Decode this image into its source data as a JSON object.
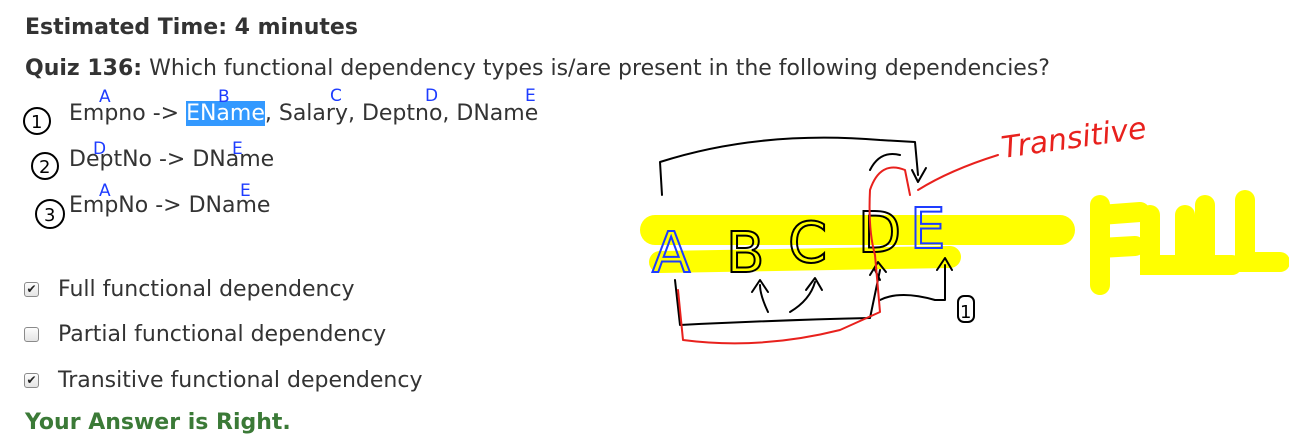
{
  "header": {
    "estimated_time": "Estimated Time: 4 minutes",
    "quiz_label": "Quiz 136:",
    "question": "Which functional dependency types is/are present in the following dependencies?"
  },
  "dependencies": [
    {
      "before": "Empno -> ",
      "highlight": "EName",
      "after": ", Salary, Deptno, DName"
    },
    {
      "text": "DeptNo -> DName"
    },
    {
      "text": "EmpNo -> DName"
    }
  ],
  "options": [
    {
      "label": "Full functional dependency",
      "checked": true,
      "mark": "✔"
    },
    {
      "label": "Partial functional dependency",
      "checked": false,
      "mark": ""
    },
    {
      "label": "Transitive functional dependency",
      "checked": true,
      "mark": "✔"
    }
  ],
  "result": "Your Answer is Right.",
  "annotations": {
    "attr_letters": [
      "A",
      "B",
      "C",
      "D",
      "E"
    ],
    "marker_numbers": [
      "1",
      "2",
      "3"
    ],
    "transitive_note": "Transitive",
    "full_note": "FULL",
    "diagram_letters": [
      "A",
      "B",
      "C",
      "D",
      "E"
    ],
    "diagram_marker": "1",
    "colors": {
      "blue": "#1e3cff",
      "red": "#e8211d",
      "black": "#000000",
      "yellow": "#ffff00",
      "highlight": "#3399ff",
      "success": "#3b7a37"
    }
  }
}
